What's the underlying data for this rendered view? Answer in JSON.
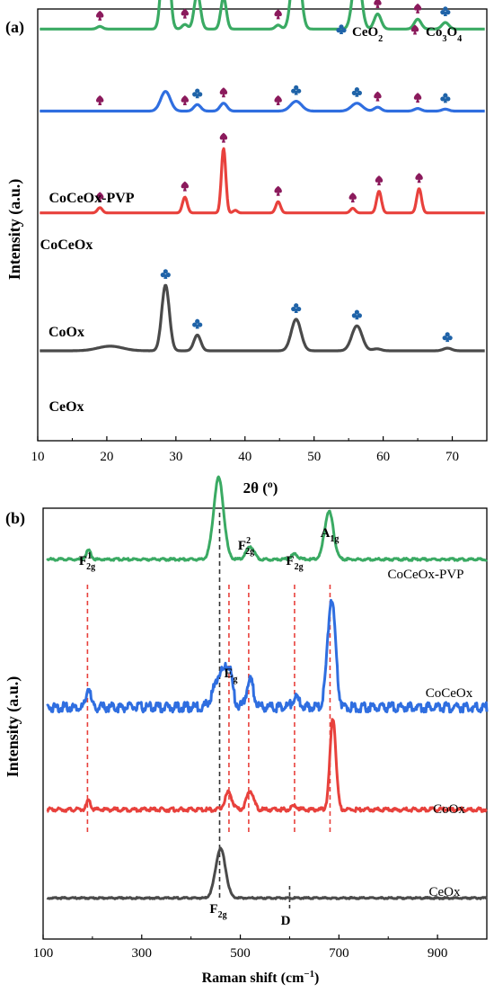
{
  "chart_data": [
    {
      "type": "line",
      "panel_label": "(a)",
      "xlabel_main": "2θ (",
      "xlabel_sup": "o",
      "xlabel_close": ")",
      "ylabel": "Intensity (a.u.)",
      "xlim": [
        10,
        75
      ],
      "xticks": [
        10,
        20,
        30,
        40,
        50,
        60,
        70
      ],
      "legend": {
        "position": "top-right",
        "items": [
          {
            "marker": "club",
            "color": "#1f63a8",
            "label": {
              "base": "CeO",
              "sub": "2",
              "mid": "",
              "sub2": ""
            }
          },
          {
            "marker": "spade",
            "color": "#8b1a5c",
            "label": {
              "base": "Co",
              "sub": "3",
              "mid": "O",
              "sub2": "4"
            }
          }
        ]
      },
      "series": [
        {
          "name": "CeOx",
          "color": "#4a4a4a",
          "base": 1.0,
          "peaks": [
            [
              20.5,
              0.07,
              1.8
            ],
            [
              28.5,
              1.0,
              0.55
            ],
            [
              33.1,
              0.24,
              0.5
            ],
            [
              47.4,
              0.48,
              0.7
            ],
            [
              56.2,
              0.38,
              0.75
            ],
            [
              59.1,
              0.03,
              0.6
            ],
            [
              69.3,
              0.04,
              0.6
            ]
          ],
          "markers": [
            [
              "club",
              28.5
            ],
            [
              "club",
              33.1
            ],
            [
              "club",
              47.4
            ],
            [
              "club",
              56.2
            ],
            [
              "club",
              69.3
            ]
          ]
        },
        {
          "name": "CoOx",
          "color": "#e8413c",
          "base": 3.1,
          "peaks": [
            [
              19.0,
              0.08,
              0.35
            ],
            [
              31.3,
              0.24,
              0.35
            ],
            [
              36.9,
              0.98,
              0.32
            ],
            [
              38.6,
              0.04,
              0.3
            ],
            [
              44.8,
              0.17,
              0.35
            ],
            [
              55.6,
              0.07,
              0.35
            ],
            [
              59.4,
              0.33,
              0.35
            ],
            [
              65.2,
              0.37,
              0.35
            ]
          ],
          "markers": [
            [
              "spade",
              19.0
            ],
            [
              "spade",
              31.3
            ],
            [
              "spade",
              36.9
            ],
            [
              "spade",
              44.8
            ],
            [
              "spade",
              55.6
            ],
            [
              "spade",
              59.4
            ],
            [
              "spade",
              65.2
            ]
          ]
        },
        {
          "name": "CoCeOx",
          "color": "#2f6ee0",
          "base": 4.65,
          "peaks": [
            [
              28.5,
              0.3,
              0.7
            ],
            [
              33.1,
              0.1,
              0.5
            ],
            [
              36.9,
              0.12,
              0.5
            ],
            [
              47.4,
              0.15,
              0.8
            ],
            [
              56.2,
              0.12,
              0.8
            ],
            [
              59.2,
              0.06,
              0.5
            ],
            [
              65.0,
              0.04,
              0.5
            ],
            [
              69.0,
              0.03,
              0.5
            ]
          ],
          "markers": [
            [
              "spade",
              19.0
            ],
            [
              "spade",
              31.3
            ],
            [
              "club",
              33.1
            ],
            [
              "spade",
              36.9
            ],
            [
              "spade",
              44.8
            ],
            [
              "club",
              47.4
            ],
            [
              "club",
              56.2
            ],
            [
              "spade",
              59.2
            ],
            [
              "spade",
              65.0
            ],
            [
              "club",
              69.0
            ]
          ]
        },
        {
          "name": "CoCeOx-PVP",
          "color": "#3aaa63",
          "base": 5.9,
          "peaks": [
            [
              19.0,
              0.04,
              0.4
            ],
            [
              28.5,
              1.9,
              0.5
            ],
            [
              31.3,
              0.07,
              0.4
            ],
            [
              33.1,
              0.55,
              0.45
            ],
            [
              36.9,
              0.48,
              0.4
            ],
            [
              44.8,
              0.06,
              0.4
            ],
            [
              47.4,
              1.34,
              0.6
            ],
            [
              56.2,
              0.95,
              0.6
            ],
            [
              59.2,
              0.23,
              0.5
            ],
            [
              65.0,
              0.15,
              0.5
            ],
            [
              69.0,
              0.1,
              0.5
            ]
          ],
          "markers": [
            [
              "spade",
              19.0
            ],
            [
              "club",
              28.5
            ],
            [
              "spade",
              31.3
            ],
            [
              "club",
              33.1
            ],
            [
              "spade",
              36.9
            ],
            [
              "spade",
              44.8
            ],
            [
              "club",
              47.4
            ],
            [
              "club",
              56.2
            ],
            [
              "spade",
              59.2
            ],
            [
              "spade",
              65.0
            ],
            [
              "club",
              69.0
            ]
          ]
        }
      ]
    },
    {
      "type": "line",
      "panel_label": "(b)",
      "xlabel_main": "Raman shift (cm",
      "xlabel_sup": "−1",
      "xlabel_close": ")",
      "ylabel": "Intensity (a.u.)",
      "xlim": [
        100,
        1000
      ],
      "xticks": [
        100,
        300,
        500,
        700,
        900
      ],
      "series": [
        {
          "name": "CeOx",
          "color": "#4a4a4a",
          "base": 0.0,
          "noise": 0.008,
          "peaks": [
            [
              460,
              1.0,
              10
            ]
          ]
        },
        {
          "name": "CoOx",
          "color": "#e8413c",
          "base": 1.8,
          "noise": 0.02,
          "peaks": [
            [
              192,
              0.18,
              4
            ],
            [
              476,
              0.35,
              7
            ],
            [
              520,
              0.38,
              7
            ],
            [
              610,
              0.08,
              6
            ],
            [
              688,
              1.85,
              6
            ]
          ]
        },
        {
          "name": "CoCeOx",
          "color": "#2f6ee0",
          "base": 3.9,
          "noise": 0.05,
          "peaks": [
            [
              192,
              0.4,
              4
            ],
            [
              462,
              0.72,
              14
            ],
            [
              478,
              0.45,
              6
            ],
            [
              520,
              0.55,
              7
            ],
            [
              612,
              0.2,
              7
            ],
            [
              685,
              2.2,
              8
            ]
          ]
        },
        {
          "name": "CoCeOx-PVP",
          "color": "#3aaa63",
          "base": 6.85,
          "noise": 0.012,
          "peaks": [
            [
              192,
              0.18,
              5
            ],
            [
              456,
              1.65,
              10
            ],
            [
              520,
              0.26,
              8
            ],
            [
              610,
              0.1,
              7
            ],
            [
              680,
              0.97,
              9
            ]
          ]
        }
      ],
      "annotations": [
        {
          "base": "F",
          "sup": "1",
          "sub": "2g",
          "x": 190
        },
        {
          "base": "E",
          "sup": "",
          "sub": "g",
          "x": 477
        },
        {
          "base": "F",
          "sup": "2",
          "sub": "2g",
          "x": 515
        },
        {
          "base": "F",
          "sup": "",
          "sub": "2g",
          "x": 607
        },
        {
          "base": "A",
          "sup": "",
          "sub": "1g",
          "x": 680
        },
        {
          "base": "F",
          "sup": "",
          "sub": "2g",
          "x": 458
        },
        {
          "base": "D",
          "sup": "",
          "sub": "",
          "x": 600
        }
      ],
      "red_dashed_lines": [
        190,
        477,
        517,
        610,
        682
      ],
      "black_dashed_lines": [
        458,
        600
      ]
    }
  ]
}
